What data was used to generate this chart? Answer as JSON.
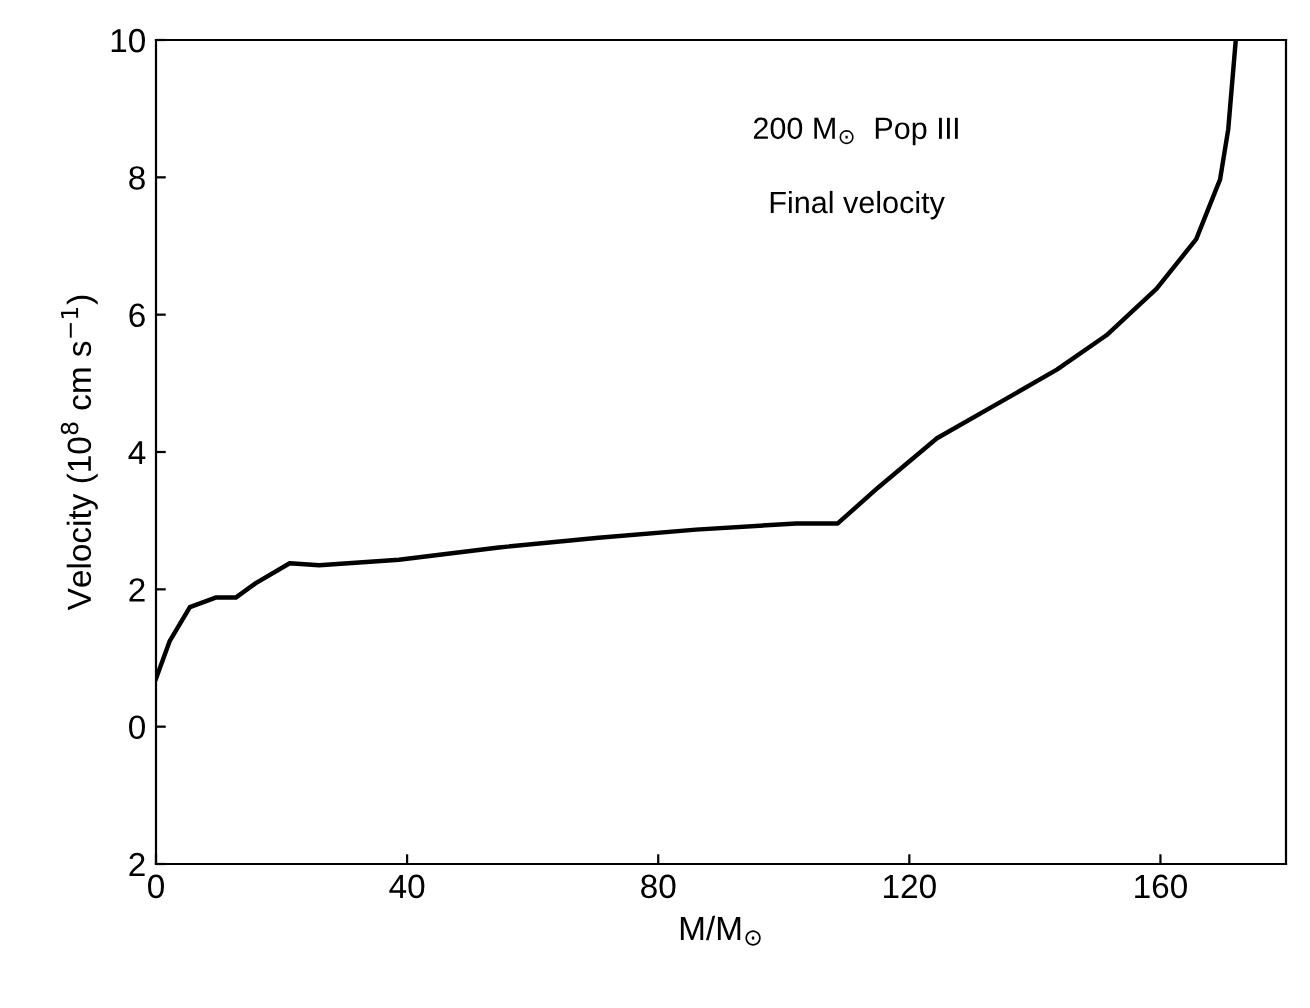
{
  "chart_data": {
    "type": "line",
    "xlabel": "M/M$_{⊙}$",
    "ylabel": "Velocity (10$^{8}$ cm s$^{−1}$)",
    "annotations": [
      "200 M$_{⊙}$  Pop III",
      "Final velocity"
    ],
    "x": [
      0,
      2.2,
      5.4,
      9.5,
      12.7,
      15.9,
      21.3,
      26,
      38.7,
      54.6,
      70.5,
      86,
      102,
      108.6,
      115,
      124.4,
      134,
      143.5,
      151.4,
      159.4,
      165.7,
      169.5,
      170.8,
      172
    ],
    "series": [
      {
        "color": "#000000",
        "values": [
          0.7,
          1.25,
          1.74,
          1.88,
          1.88,
          2.09,
          2.38,
          2.35,
          2.43,
          2.61,
          2.75,
          2.87,
          2.96,
          2.96,
          3.48,
          4.2,
          4.7,
          5.2,
          5.7,
          6.38,
          7.1,
          7.97,
          8.7,
          10
        ]
      }
    ],
    "xlim": [
      0,
      180
    ],
    "xticks": [
      0,
      40,
      80,
      120,
      160
    ],
    "ylim": [
      -2,
      10
    ],
    "yticks": [
      {
        "value": -2,
        "label": "2"
      },
      0,
      2,
      4,
      6,
      8,
      10
    ],
    "grid": false,
    "legend": false,
    "marker": "none",
    "line_style": "solid"
  }
}
